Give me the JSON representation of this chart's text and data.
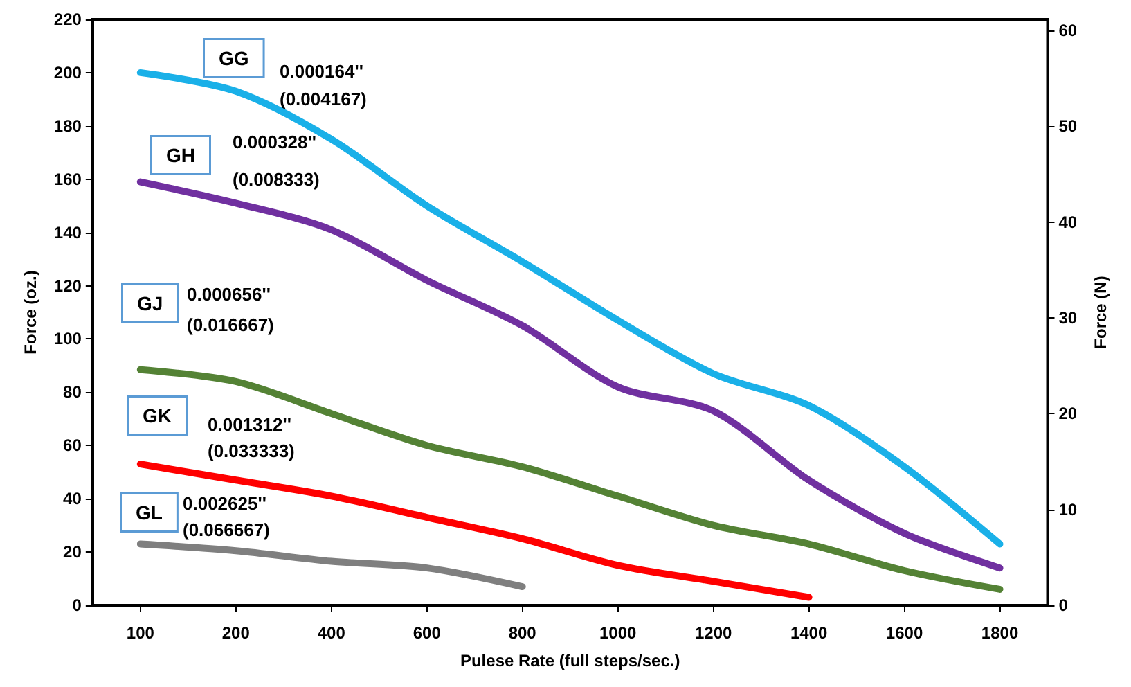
{
  "chart_data": {
    "type": "line",
    "xlabel": "Pulese Rate (full steps/sec.)",
    "ylabel": "Force (oz.)",
    "y2label": "Force (N)",
    "categories": [
      "100",
      "200",
      "400",
      "600",
      "800",
      "1000",
      "1200",
      "1400",
      "1600",
      "1800"
    ],
    "series": [
      {
        "color": "#1ab0e8",
        "values": [
          200,
          193,
          175,
          150,
          129,
          107,
          87,
          75,
          52,
          23
        ]
      },
      {
        "color": "#7030a0",
        "values": [
          159,
          151,
          141,
          122,
          105,
          82,
          73,
          47,
          27,
          14
        ]
      },
      {
        "color": "#548235",
        "values": [
          88.5,
          84,
          72,
          60,
          52,
          41,
          30,
          23,
          13,
          6
        ]
      },
      {
        "color": "#ff0000",
        "values": [
          53,
          47,
          41,
          33,
          25,
          15,
          9,
          3,
          null,
          null
        ]
      },
      {
        "color": "#7f7f7f",
        "values": [
          23,
          20.5,
          16.5,
          14,
          7,
          null,
          null,
          null,
          null,
          null
        ]
      }
    ],
    "ylim": [
      0,
      220
    ],
    "yticks": [
      0,
      20,
      40,
      60,
      80,
      100,
      120,
      140,
      160,
      180,
      200,
      220
    ],
    "y2lim": [
      0,
      61.16
    ],
    "y2ticks": [
      0,
      10,
      20,
      30,
      40,
      50,
      60
    ],
    "grid": false,
    "marker": "none",
    "line_style": "solid",
    "annotations": [
      "GG",
      "0.000164''",
      "(0.004167)",
      "GH",
      "0.000328''",
      "(0.008333)",
      "GJ",
      "0.000656''",
      "(0.016667)",
      "GK",
      "0.001312''",
      "(0.033333)",
      "GL",
      "0.002625''",
      "(0.066667)"
    ]
  }
}
